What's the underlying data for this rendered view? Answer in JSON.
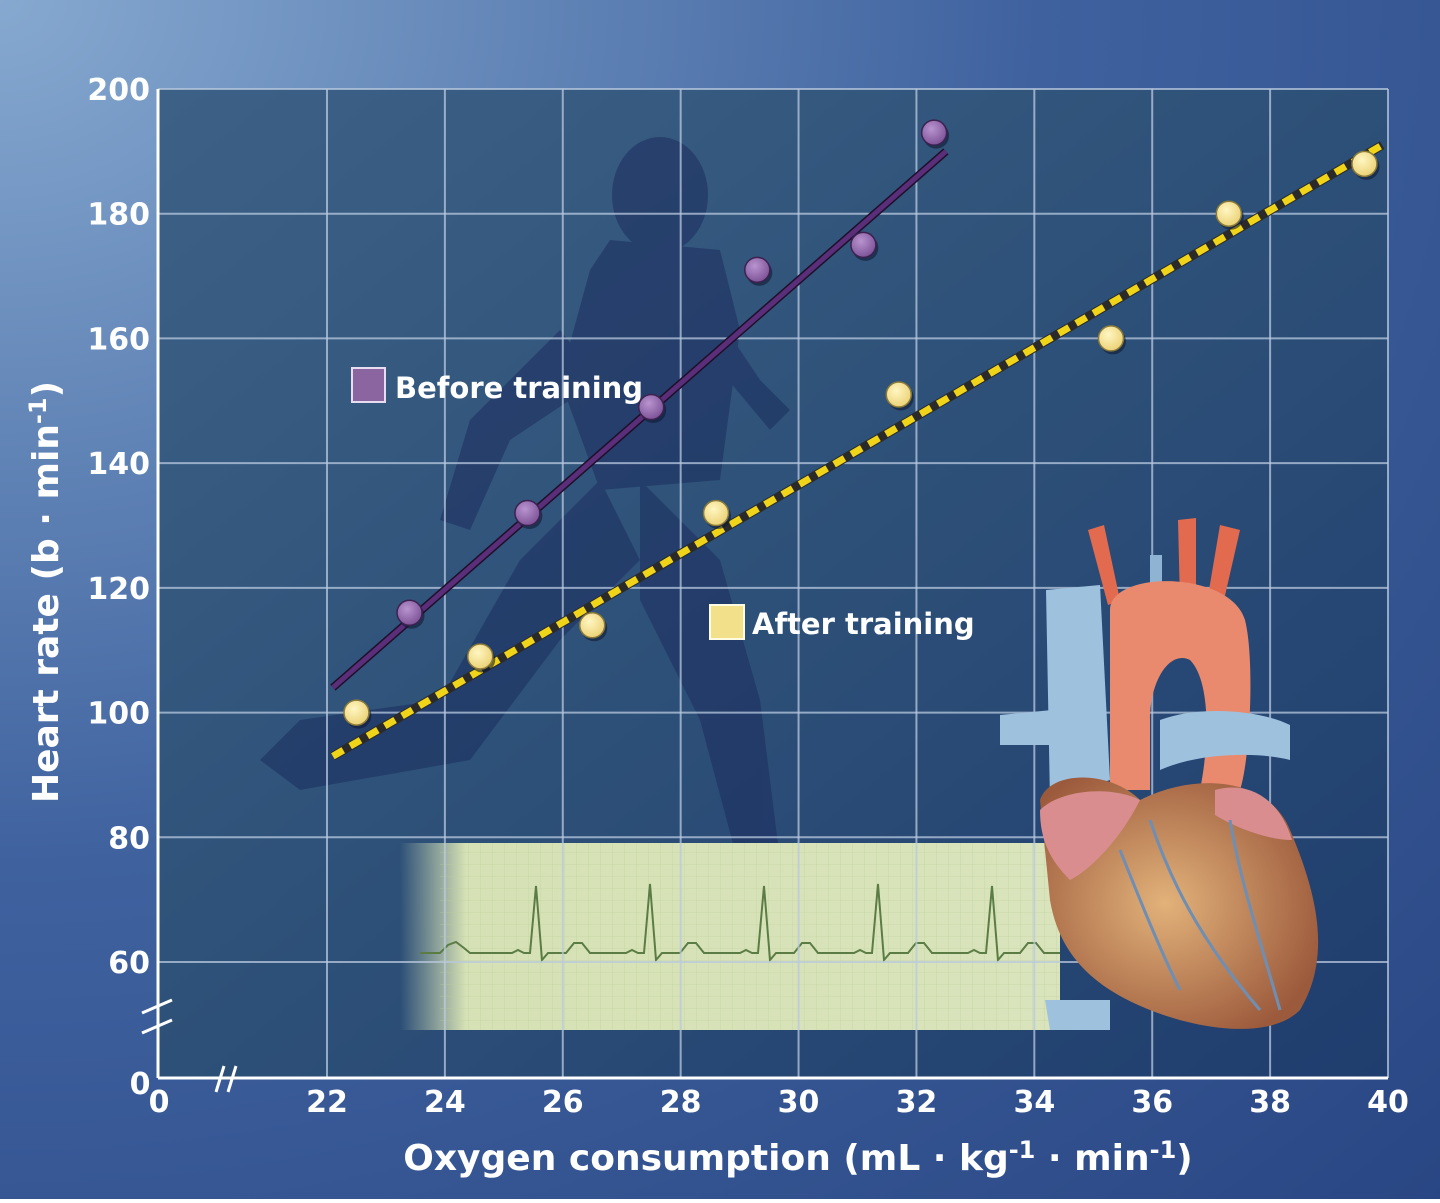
{
  "chart_data": {
    "type": "scatter",
    "xlabel": "Oxygen consumption (mL · kg",
    "xlabel_sup1": "-1",
    "xlabel_mid": " · min",
    "xlabel_sup2": "-1",
    "xlabel_end": ")",
    "ylabel": "Heart rate (b · min",
    "ylabel_sup": "-1",
    "ylabel_end": ")",
    "xlim": [
      22,
      40
    ],
    "ylim": [
      60,
      200
    ],
    "x_axis_break": true,
    "y_axis_break": true,
    "x_ticks": [
      22,
      24,
      26,
      28,
      30,
      32,
      34,
      36,
      38,
      40
    ],
    "y_ticks": [
      60,
      80,
      100,
      120,
      140,
      160,
      180,
      200
    ],
    "zero_label": "0",
    "grid": true,
    "series": [
      {
        "name": "Before training",
        "color": "#8a65a0",
        "line_color": "#5a2e78",
        "line_style": "solid",
        "points": [
          {
            "x": 23.4,
            "y": 116
          },
          {
            "x": 25.4,
            "y": 132
          },
          {
            "x": 27.5,
            "y": 149
          },
          {
            "x": 29.3,
            "y": 171
          },
          {
            "x": 31.1,
            "y": 175
          },
          {
            "x": 32.3,
            "y": 193
          }
        ],
        "fit": [
          {
            "x": 22.1,
            "y": 104
          },
          {
            "x": 32.5,
            "y": 190
          }
        ]
      },
      {
        "name": "After training",
        "color": "#f3e08a",
        "line_color": "#f0d419",
        "line_style": "dashed",
        "points": [
          {
            "x": 22.5,
            "y": 100
          },
          {
            "x": 24.6,
            "y": 109
          },
          {
            "x": 26.5,
            "y": 114
          },
          {
            "x": 28.6,
            "y": 132
          },
          {
            "x": 31.7,
            "y": 151
          },
          {
            "x": 35.3,
            "y": 160
          },
          {
            "x": 37.3,
            "y": 180
          },
          {
            "x": 39.6,
            "y": 188
          }
        ],
        "fit": [
          {
            "x": 22.1,
            "y": 93
          },
          {
            "x": 39.9,
            "y": 191
          }
        ]
      }
    ],
    "legend_placement": "inside-plot"
  },
  "colors": {
    "background_dark": "#1f3a76",
    "background_light": "#7fa2cc",
    "plot_bg": "#2d4f78",
    "grid": "#b9c9df"
  }
}
